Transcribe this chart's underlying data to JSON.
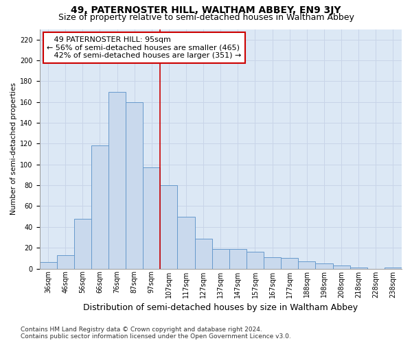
{
  "title": "49, PATERNOSTER HILL, WALTHAM ABBEY, EN9 3JY",
  "subtitle": "Size of property relative to semi-detached houses in Waltham Abbey",
  "xlabel": "Distribution of semi-detached houses by size in Waltham Abbey",
  "ylabel": "Number of semi-detached properties",
  "categories": [
    "36sqm",
    "46sqm",
    "56sqm",
    "66sqm",
    "76sqm",
    "87sqm",
    "97sqm",
    "107sqm",
    "117sqm",
    "127sqm",
    "137sqm",
    "147sqm",
    "157sqm",
    "167sqm",
    "177sqm",
    "188sqm",
    "198sqm",
    "208sqm",
    "218sqm",
    "228sqm",
    "238sqm"
  ],
  "values": [
    6,
    13,
    48,
    118,
    170,
    160,
    97,
    80,
    50,
    29,
    19,
    19,
    16,
    11,
    10,
    7,
    5,
    3,
    1,
    0,
    1
  ],
  "bar_color": "#c9d9ed",
  "bar_edge_color": "#6699cc",
  "vline_x_index": 6,
  "vline_label": "49 PATERNOSTER HILL: 95sqm",
  "pct_smaller": "56% of semi-detached houses are smaller (465)",
  "pct_larger": "42% of semi-detached houses are larger (351)",
  "annotation_box_color": "#ffffff",
  "annotation_box_edge": "#cc0000",
  "vline_color": "#cc0000",
  "grid_color": "#c8d4e8",
  "bg_color": "#dce8f5",
  "ylim": [
    0,
    230
  ],
  "yticks": [
    0,
    20,
    40,
    60,
    80,
    100,
    120,
    140,
    160,
    180,
    200,
    220
  ],
  "footer_line1": "Contains HM Land Registry data © Crown copyright and database right 2024.",
  "footer_line2": "Contains public sector information licensed under the Open Government Licence v3.0.",
  "title_fontsize": 10,
  "subtitle_fontsize": 9,
  "xlabel_fontsize": 9,
  "ylabel_fontsize": 7.5,
  "tick_fontsize": 7,
  "annotation_fontsize": 8,
  "footer_fontsize": 6.5
}
